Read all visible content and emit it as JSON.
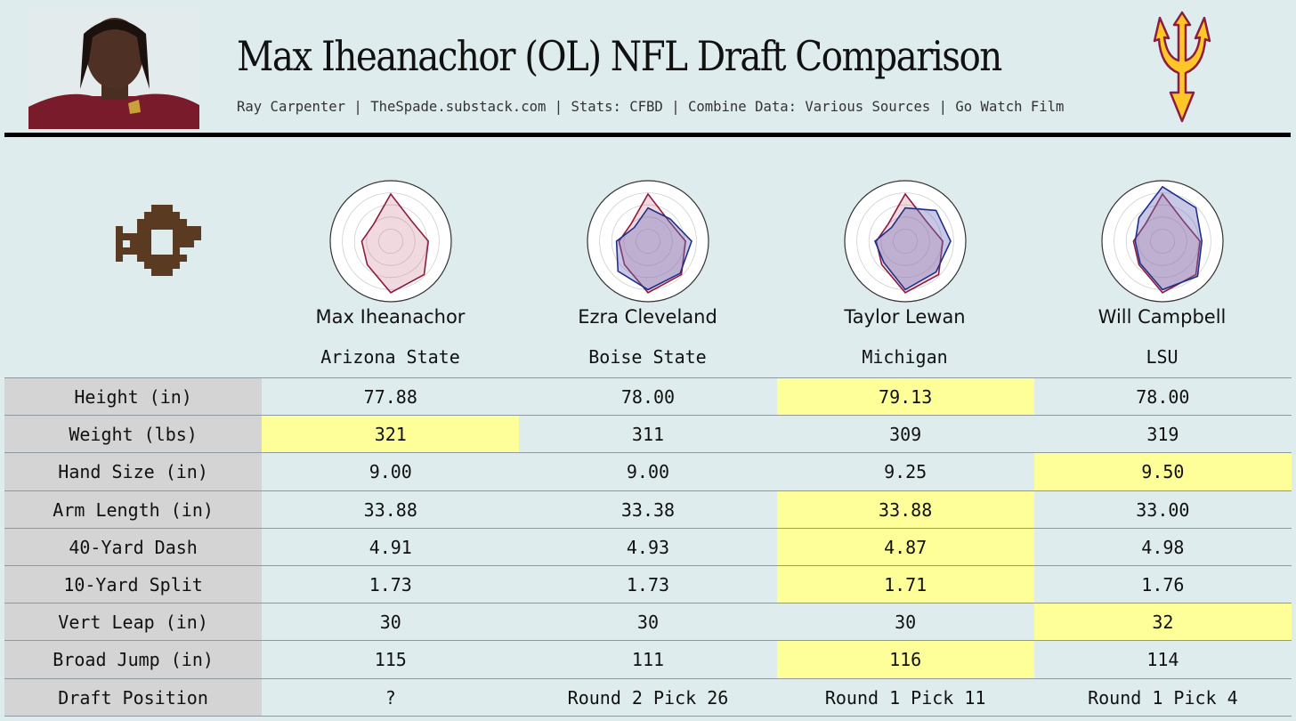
{
  "header": {
    "title": "Max Iheanachor (OL) NFL Draft Comparison",
    "subtitle": "Ray Carpenter | TheSpade.substack.com | Stats: CFBD | Combine Data: Various Sources | Go Watch Film"
  },
  "colors": {
    "background": "#dfecee",
    "highlight": "#ffff99",
    "label_cell": "#d4d4d4",
    "maroon": "#8c1d40",
    "gold": "#ffc627",
    "comparison_blue": "#1f2f8a"
  },
  "players": [
    {
      "name": "Max Iheanachor",
      "school": "Arizona State"
    },
    {
      "name": "Ezra Cleveland",
      "school": "Boise State"
    },
    {
      "name": "Taylor Lewan",
      "school": "Michigan"
    },
    {
      "name": "Will Campbell",
      "school": "LSU"
    }
  ],
  "radars": [
    {
      "target": [
        0.78,
        0.48,
        0.62,
        0.78,
        0.85,
        0.55,
        0.48,
        0.4
      ],
      "comparison": null
    },
    {
      "target": [
        0.78,
        0.48,
        0.62,
        0.78,
        0.85,
        0.55,
        0.48,
        0.4
      ],
      "comparison": [
        0.55,
        0.52,
        0.72,
        0.75,
        0.8,
        0.7,
        0.52,
        0.32
      ]
    },
    {
      "target": [
        0.78,
        0.48,
        0.62,
        0.78,
        0.85,
        0.55,
        0.48,
        0.4
      ],
      "comparison": [
        0.55,
        0.72,
        0.75,
        0.72,
        0.8,
        0.5,
        0.5,
        0.32
      ]
    },
    {
      "target": [
        0.78,
        0.48,
        0.62,
        0.78,
        0.85,
        0.55,
        0.48,
        0.4
      ],
      "comparison": [
        0.9,
        0.78,
        0.65,
        0.82,
        0.8,
        0.52,
        0.45,
        0.55
      ]
    }
  ],
  "rows": [
    {
      "label": "Height (in)",
      "values": [
        "77.88",
        "78.00",
        "79.13",
        "78.00"
      ],
      "best": 2
    },
    {
      "label": "Weight (lbs)",
      "values": [
        "321",
        "311",
        "309",
        "319"
      ],
      "best": 0
    },
    {
      "label": "Hand Size (in)",
      "values": [
        "9.00",
        "9.00",
        "9.25",
        "9.50"
      ],
      "best": 3
    },
    {
      "label": "Arm Length (in)",
      "values": [
        "33.88",
        "33.38",
        "33.88",
        "33.00"
      ],
      "best": 2
    },
    {
      "label": "40-Yard Dash",
      "values": [
        "4.91",
        "4.93",
        "4.87",
        "4.98"
      ],
      "best": 2
    },
    {
      "label": "10-Yard Split",
      "values": [
        "1.73",
        "1.73",
        "1.71",
        "1.76"
      ],
      "best": 2
    },
    {
      "label": "Vert Leap (in)",
      "values": [
        "30",
        "30",
        "30",
        "32"
      ],
      "best": 3
    },
    {
      "label": "Broad Jump (in)",
      "values": [
        "115",
        "111",
        "116",
        "114"
      ],
      "best": 2
    },
    {
      "label": "Draft Position",
      "values": [
        "?",
        "Round 2 Pick 26",
        "Round 1 Pick 11",
        "Round 1 Pick 4"
      ],
      "best": -1
    }
  ]
}
